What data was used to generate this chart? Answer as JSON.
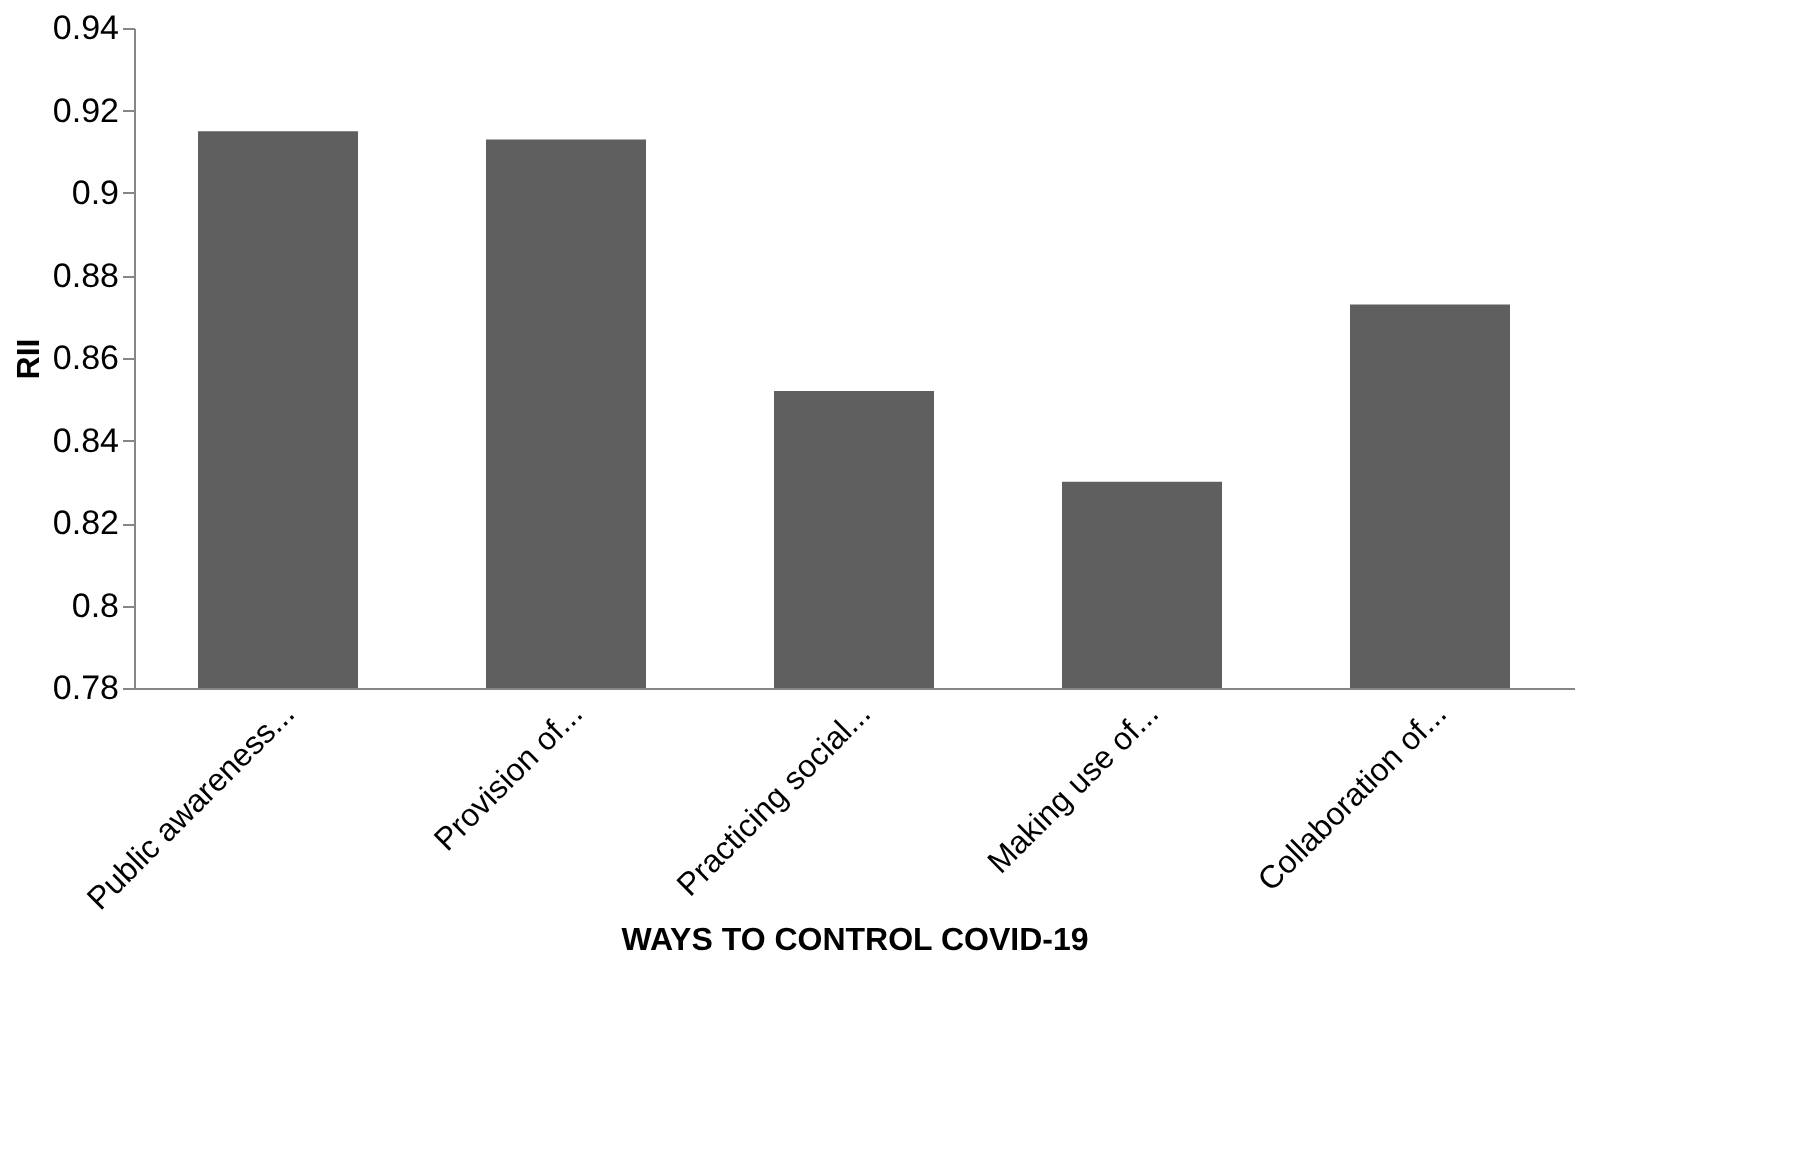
{
  "chart_data": {
    "type": "bar",
    "xlabel": "WAYS TO CONTROL COVID-19",
    "ylabel": "RII",
    "categories": [
      "Public awareness...",
      "Provision of...",
      "Practicing social...",
      "Making use of...",
      "Collaboration of..."
    ],
    "values": [
      0.915,
      0.913,
      0.852,
      0.83,
      0.873
    ],
    "color": "#5f5f5f",
    "ylim": [
      0.78,
      0.94
    ],
    "yticks": [
      0.78,
      {
        "value": 0.8,
        "label": "0.8"
      },
      0.82,
      0.84,
      0.86,
      0.88,
      {
        "value": 0.9,
        "label": "0.9"
      },
      0.92,
      0.94
    ],
    "grid": false
  }
}
